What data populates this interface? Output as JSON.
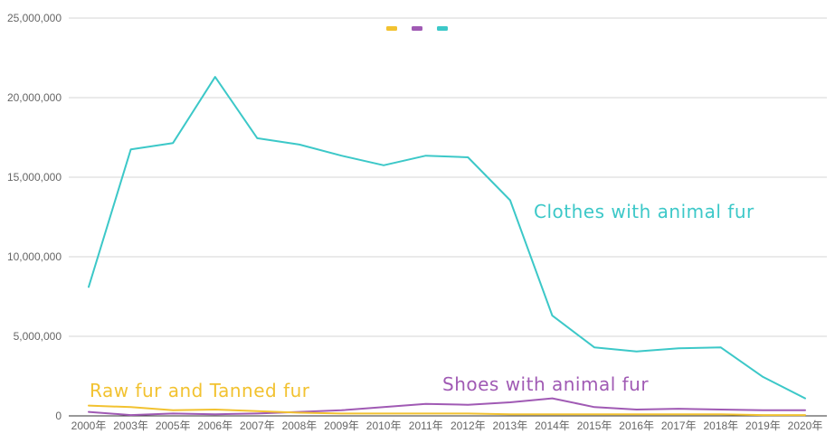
{
  "chart_data": {
    "type": "line",
    "categories": [
      "2000年",
      "2003年",
      "2005年",
      "2006年",
      "2007年",
      "2008年",
      "2009年",
      "2010年",
      "2011年",
      "2012年",
      "2013年",
      "2014年",
      "2015年",
      "2016年",
      "2017年",
      "2018年",
      "2019年",
      "2020年"
    ],
    "ylim": [
      0,
      25000000
    ],
    "yticks": [
      "0",
      "5,000,000",
      "10,000,000",
      "15,000,000",
      "20,000,000",
      "25,000,000"
    ],
    "grid": true,
    "legend": "top-center",
    "series": [
      {
        "name": "Clothes with animal fur",
        "color": "#3cc8c8",
        "values": [
          8100000,
          16750000,
          17150000,
          21300000,
          17450000,
          17050000,
          16350000,
          15750000,
          16350000,
          16250000,
          13550000,
          6300000,
          4300000,
          4050000,
          4250000,
          4300000,
          2450000,
          1100000
        ]
      },
      {
        "name": "Shoes with animal fur",
        "color": "#a05ab4",
        "values": [
          250000,
          50000,
          150000,
          100000,
          150000,
          250000,
          350000,
          550000,
          750000,
          700000,
          850000,
          1100000,
          550000,
          400000,
          450000,
          400000,
          350000,
          350000
        ]
      },
      {
        "name": "Raw fur and Tanned fur",
        "color": "#f2c230",
        "values": [
          650000,
          550000,
          350000,
          400000,
          300000,
          200000,
          150000,
          150000,
          150000,
          150000,
          100000,
          100000,
          100000,
          100000,
          100000,
          100000,
          50000,
          50000
        ]
      }
    ]
  }
}
